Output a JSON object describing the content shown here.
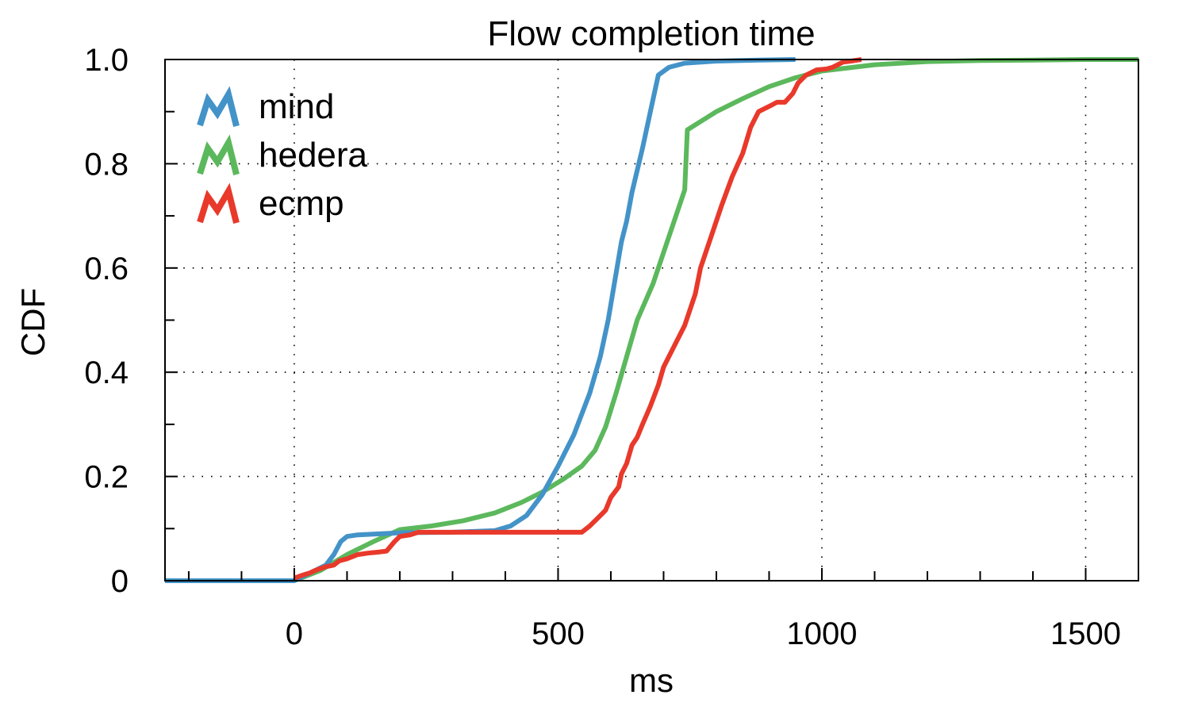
{
  "chart_data": {
    "type": "line",
    "title": "Flow completion time",
    "xlabel": "ms",
    "ylabel": "CDF",
    "xlim": [
      -245,
      1600
    ],
    "ylim": [
      0,
      1.0
    ],
    "x_ticks": [
      0,
      500,
      1000,
      1500
    ],
    "x_tick_labels": [
      "0",
      "500",
      "1000",
      "1500"
    ],
    "x_minor_step": 100,
    "y_ticks": [
      0,
      0.2,
      0.4,
      0.6,
      0.8,
      1.0
    ],
    "y_tick_labels": [
      "0",
      "0.2",
      "0.4",
      "0.6",
      "0.8",
      "1.0"
    ],
    "y_minor_step": 0.1,
    "grid": true,
    "legend_position": "top-left",
    "series": [
      {
        "name": "mind",
        "color": "#4393c8",
        "points": [
          [
            -245,
            0
          ],
          [
            0,
            0
          ],
          [
            20,
            0.01
          ],
          [
            40,
            0.02
          ],
          [
            60,
            0.03
          ],
          [
            75,
            0.05
          ],
          [
            88,
            0.075
          ],
          [
            100,
            0.085
          ],
          [
            120,
            0.088
          ],
          [
            200,
            0.092
          ],
          [
            300,
            0.093
          ],
          [
            380,
            0.096
          ],
          [
            410,
            0.105
          ],
          [
            440,
            0.125
          ],
          [
            470,
            0.165
          ],
          [
            500,
            0.22
          ],
          [
            530,
            0.28
          ],
          [
            560,
            0.36
          ],
          [
            580,
            0.43
          ],
          [
            595,
            0.5
          ],
          [
            610,
            0.59
          ],
          [
            620,
            0.65
          ],
          [
            630,
            0.69
          ],
          [
            640,
            0.745
          ],
          [
            660,
            0.83
          ],
          [
            675,
            0.9
          ],
          [
            690,
            0.97
          ],
          [
            710,
            0.985
          ],
          [
            740,
            0.993
          ],
          [
            800,
            0.997
          ],
          [
            880,
            0.999
          ],
          [
            950,
            1.0
          ]
        ]
      },
      {
        "name": "hedera",
        "color": "#5cb85c",
        "points": [
          [
            -245,
            0
          ],
          [
            0,
            0
          ],
          [
            50,
            0.02
          ],
          [
            100,
            0.05
          ],
          [
            150,
            0.075
          ],
          [
            200,
            0.098
          ],
          [
            260,
            0.105
          ],
          [
            320,
            0.115
          ],
          [
            380,
            0.13
          ],
          [
            430,
            0.15
          ],
          [
            470,
            0.17
          ],
          [
            510,
            0.195
          ],
          [
            545,
            0.22
          ],
          [
            570,
            0.25
          ],
          [
            590,
            0.295
          ],
          [
            610,
            0.36
          ],
          [
            630,
            0.43
          ],
          [
            650,
            0.5
          ],
          [
            680,
            0.57
          ],
          [
            700,
            0.63
          ],
          [
            720,
            0.69
          ],
          [
            740,
            0.75
          ],
          [
            745,
            0.865
          ],
          [
            800,
            0.9
          ],
          [
            850,
            0.925
          ],
          [
            900,
            0.948
          ],
          [
            950,
            0.965
          ],
          [
            1000,
            0.978
          ],
          [
            1100,
            0.99
          ],
          [
            1200,
            0.996
          ],
          [
            1300,
            0.998
          ],
          [
            1400,
            0.999
          ],
          [
            1500,
            1.0
          ],
          [
            1600,
            1.0
          ]
        ]
      },
      {
        "name": "ecmp",
        "color": "#e8392b",
        "points": [
          [
            0,
            0.005
          ],
          [
            20,
            0.012
          ],
          [
            30,
            0.015
          ],
          [
            40,
            0.02
          ],
          [
            60,
            0.027
          ],
          [
            75,
            0.03
          ],
          [
            85,
            0.038
          ],
          [
            100,
            0.042
          ],
          [
            120,
            0.05
          ],
          [
            140,
            0.053
          ],
          [
            160,
            0.055
          ],
          [
            175,
            0.057
          ],
          [
            190,
            0.075
          ],
          [
            200,
            0.085
          ],
          [
            220,
            0.088
          ],
          [
            235,
            0.093
          ],
          [
            300,
            0.093
          ],
          [
            400,
            0.093
          ],
          [
            500,
            0.093
          ],
          [
            545,
            0.093
          ],
          [
            560,
            0.105
          ],
          [
            575,
            0.12
          ],
          [
            590,
            0.135
          ],
          [
            600,
            0.16
          ],
          [
            615,
            0.18
          ],
          [
            620,
            0.205
          ],
          [
            630,
            0.225
          ],
          [
            640,
            0.26
          ],
          [
            650,
            0.275
          ],
          [
            660,
            0.3
          ],
          [
            675,
            0.335
          ],
          [
            690,
            0.375
          ],
          [
            700,
            0.41
          ],
          [
            720,
            0.45
          ],
          [
            740,
            0.49
          ],
          [
            760,
            0.55
          ],
          [
            770,
            0.6
          ],
          [
            790,
            0.66
          ],
          [
            810,
            0.72
          ],
          [
            830,
            0.775
          ],
          [
            850,
            0.82
          ],
          [
            865,
            0.87
          ],
          [
            880,
            0.9
          ],
          [
            900,
            0.91
          ],
          [
            915,
            0.918
          ],
          [
            930,
            0.918
          ],
          [
            945,
            0.935
          ],
          [
            955,
            0.955
          ],
          [
            970,
            0.97
          ],
          [
            990,
            0.98
          ],
          [
            1010,
            0.982
          ],
          [
            1020,
            0.985
          ],
          [
            1030,
            0.99
          ],
          [
            1040,
            0.995
          ],
          [
            1055,
            0.997
          ],
          [
            1075,
            1.0
          ]
        ]
      }
    ]
  }
}
